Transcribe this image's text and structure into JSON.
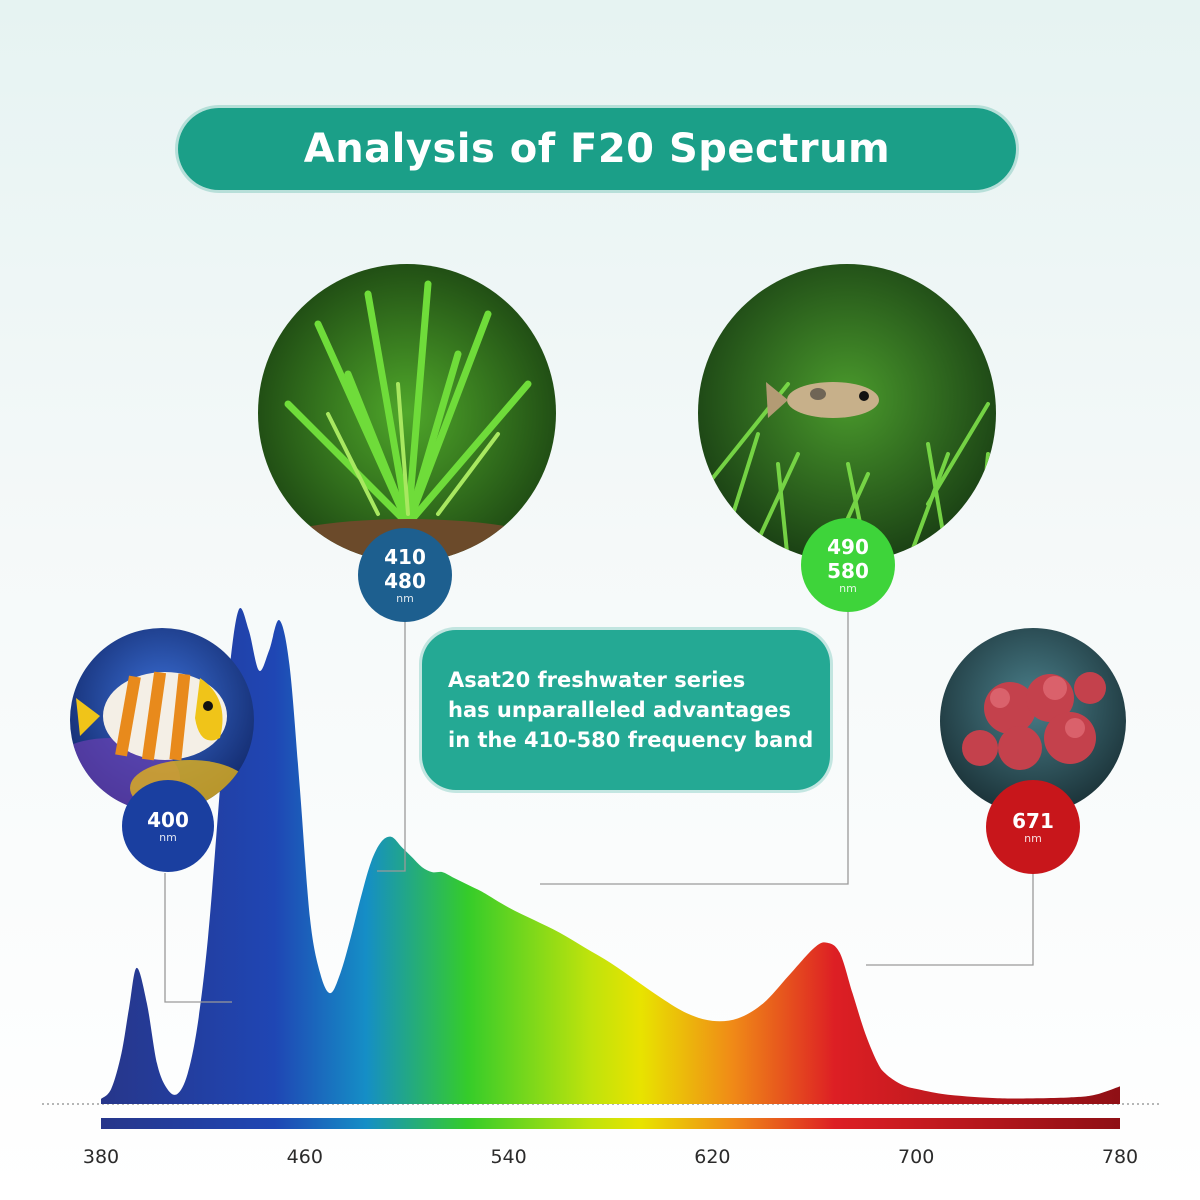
{
  "title": "Analysis of F20 Spectrum",
  "info_box": {
    "lines": [
      "Asat20 freshwater series",
      "has unparalleled advantages",
      "in the 410-580 frequency band"
    ]
  },
  "callouts": [
    {
      "id": "c400",
      "value": "400",
      "value2": "",
      "unit": "nm",
      "color": "#1a3fa0",
      "image": "butterflyfish"
    },
    {
      "id": "c410",
      "value": "410",
      "value2": "480",
      "unit": "nm",
      "color": "#1d5f8f",
      "image": "aquarium-plant"
    },
    {
      "id": "c490",
      "value": "490",
      "value2": "580",
      "unit": "nm",
      "color": "#3ed43a",
      "image": "fish-in-grass"
    },
    {
      "id": "c671",
      "value": "671",
      "value2": "",
      "unit": "nm",
      "color": "#c8161b",
      "image": "red-plant"
    }
  ],
  "chart_data": {
    "type": "area",
    "title": "Analysis of F20 Spectrum",
    "xlabel": "",
    "ylabel": "",
    "xlim": [
      380,
      780
    ],
    "ylim": [
      0,
      1
    ],
    "x_ticks": [
      "380",
      "460",
      "540",
      "620",
      "700",
      "780"
    ],
    "grid": false,
    "series": [
      {
        "x": [
          380,
          384,
          388,
          391,
          394,
          398,
          402,
          406,
          410,
          414,
          418,
          422,
          426,
          430,
          434,
          438,
          442,
          446,
          450,
          454,
          458,
          462,
          466,
          470,
          474,
          478,
          482,
          486,
          490,
          494,
          498,
          502,
          506,
          510,
          514,
          518,
          522,
          526,
          530,
          540,
          550,
          560,
          570,
          580,
          590,
          600,
          610,
          620,
          630,
          640,
          650,
          660,
          665,
          670,
          675,
          680,
          685,
          688,
          692,
          696,
          700,
          710,
          720,
          730,
          740,
          760,
          770,
          780
        ],
        "y": [
          0.01,
          0.03,
          0.1,
          0.19,
          0.27,
          0.2,
          0.08,
          0.03,
          0.02,
          0.06,
          0.16,
          0.33,
          0.58,
          0.84,
          0.98,
          0.94,
          0.86,
          0.9,
          0.96,
          0.87,
          0.63,
          0.37,
          0.26,
          0.22,
          0.26,
          0.33,
          0.41,
          0.48,
          0.52,
          0.53,
          0.51,
          0.49,
          0.47,
          0.46,
          0.46,
          0.45,
          0.44,
          0.43,
          0.42,
          0.39,
          0.365,
          0.34,
          0.31,
          0.28,
          0.245,
          0.21,
          0.18,
          0.165,
          0.17,
          0.2,
          0.255,
          0.31,
          0.32,
          0.3,
          0.22,
          0.14,
          0.08,
          0.06,
          0.045,
          0.035,
          0.03,
          0.02,
          0.015,
          0.012,
          0.011,
          0.013,
          0.018,
          0.035
        ]
      }
    ],
    "colors": {
      "violet": "#27368a",
      "blue": "#1f46b4",
      "cyan": "#158ec6",
      "green": "#35cc2a",
      "yellow": "#e8e300",
      "orange": "#f08a17",
      "red": "#dd1f24",
      "dark_red": "#8f0f15"
    }
  }
}
